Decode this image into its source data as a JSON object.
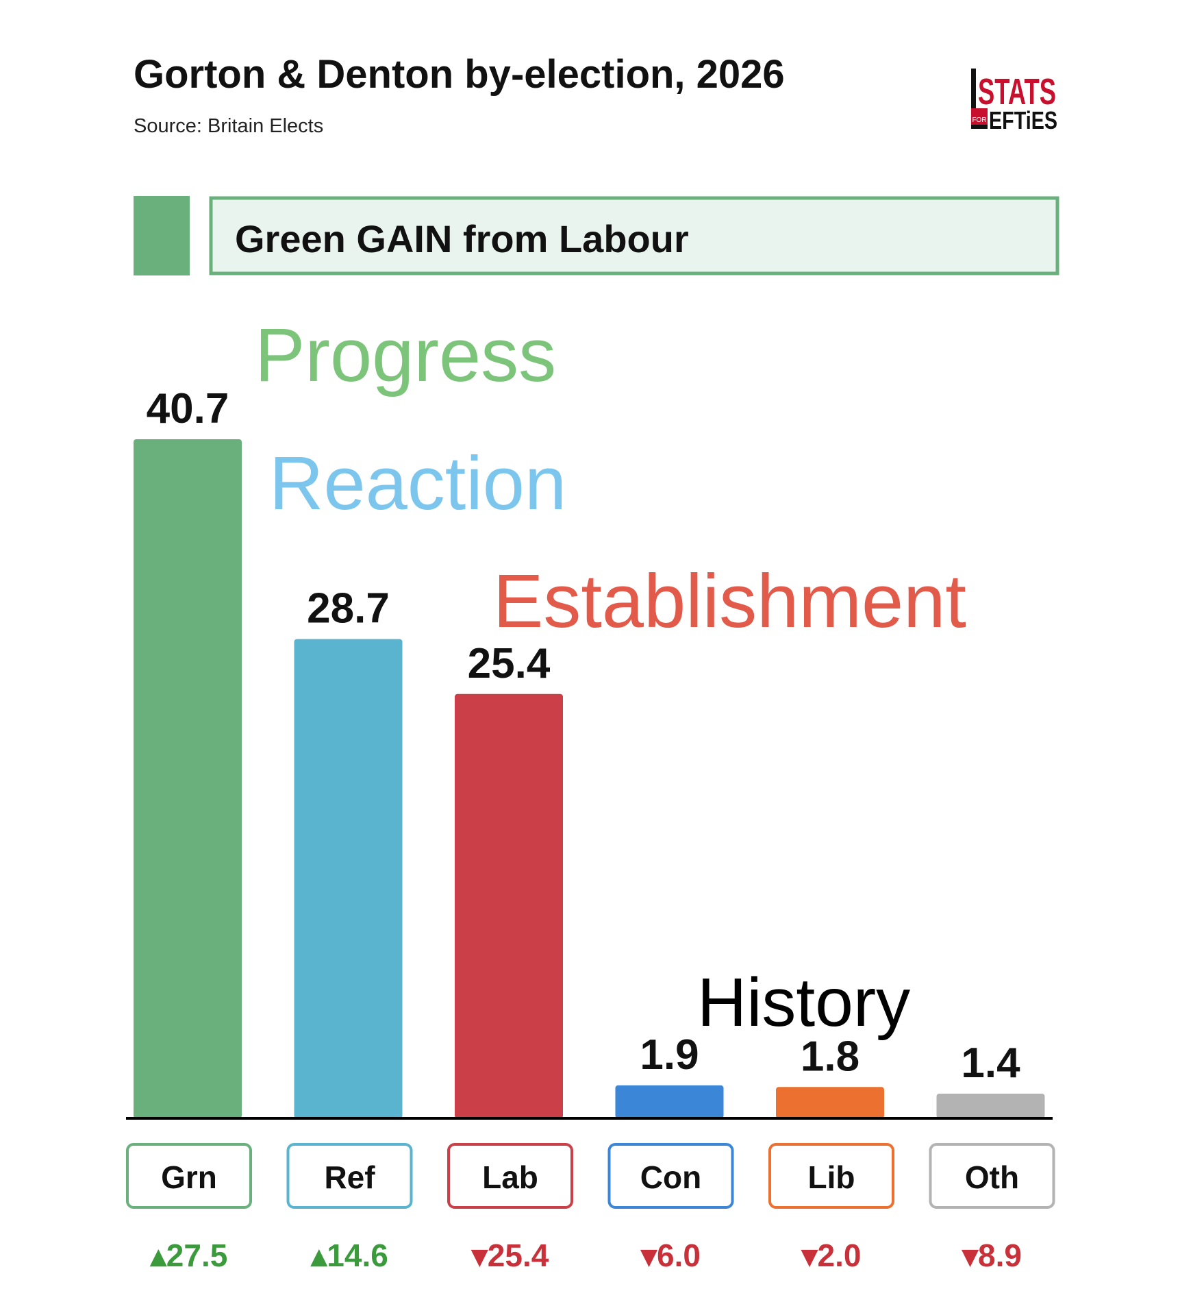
{
  "header": {
    "title": "Gorton & Denton by-election, 2026",
    "source": "Source: Britain Elects"
  },
  "logo": {
    "text": "STATS FOR LEFTIES",
    "line1": "STATS",
    "line2": "EFTiES",
    "small": "FOR",
    "color": "#c8102e"
  },
  "banner": {
    "text": "Green GAIN from Labour",
    "color": "#69b07d",
    "fill": "#eaf4ee"
  },
  "annotations": [
    {
      "text": "Progress",
      "color": "#7cc47a"
    },
    {
      "text": "Reaction",
      "color": "#7cc6ee"
    },
    {
      "text": "Establishment",
      "color": "#e25a4a"
    },
    {
      "text": "History",
      "color": "#000000"
    }
  ],
  "chart_data": {
    "type": "bar",
    "title": "Gorton & Denton by-election, 2026",
    "subtitle": "Source: Britain Elects",
    "categories": [
      "Grn",
      "Ref",
      "Lab",
      "Con",
      "Lib",
      "Oth"
    ],
    "values": [
      40.7,
      28.7,
      25.4,
      1.9,
      1.8,
      1.4
    ],
    "value_labels": [
      "40.7",
      "28.7",
      "25.4",
      "1.9",
      "1.8",
      "1.4"
    ],
    "changes": [
      27.5,
      14.6,
      -25.4,
      -6.0,
      -2.0,
      -8.9
    ],
    "change_labels": [
      "▴27.5",
      "▴14.6",
      "▾25.4",
      "▾6.0",
      "▾2.0",
      "▾8.9"
    ],
    "colors": [
      "#69b07d",
      "#5ab4cf",
      "#cb3f48",
      "#3b86d6",
      "#ec7030",
      "#b3b3b3"
    ],
    "change_colors": {
      "up": "#3b9a3b",
      "down": "#c8303a"
    },
    "ylim": [
      0,
      42
    ],
    "grid": false,
    "legend": "none",
    "xlabel": "",
    "ylabel": ""
  }
}
